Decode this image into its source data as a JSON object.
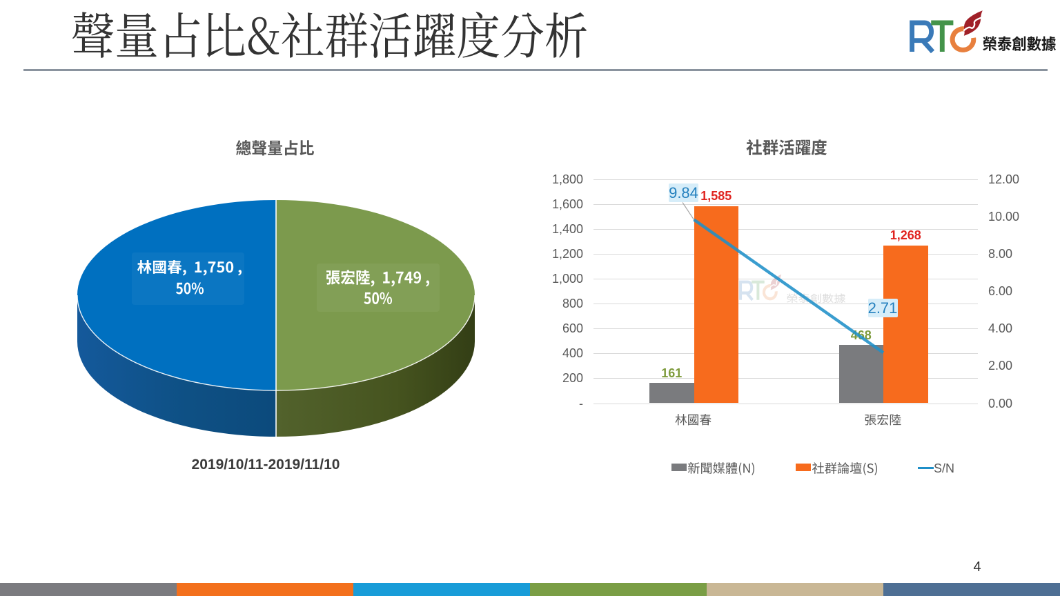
{
  "slide": {
    "title": "聲量占比&社群活躍度分析",
    "page_number": "4",
    "logo": {
      "brand": "RTC",
      "company": "榮泰創數據",
      "colors": {
        "r": "#3A7AB8",
        "t": "#44934A",
        "c": "#E8803E",
        "flame": "#A02028",
        "text": "#1A1A1A"
      }
    },
    "footer_stripe_colors": [
      "#7B7B7F",
      "#F3701D",
      "#189CD8",
      "#7A9E45",
      "#C9B795",
      "#4E6F94"
    ]
  },
  "chart_data": [
    {
      "type": "pie",
      "style": "3d",
      "title": "總聲量占比",
      "period": "2019/10/11-2019/11/10",
      "labels": [
        "林國春",
        "張宏陸"
      ],
      "values": [
        1750,
        1749
      ],
      "percents": [
        "50%",
        "50%"
      ],
      "slice_labels": [
        "林國春,  1,750 , 50%",
        "張宏陸,  1,749 , 50%"
      ],
      "colors": [
        "#0070C0",
        "#7C9A4D"
      ],
      "label_color": "#FFFFFF"
    },
    {
      "type": "bar",
      "title": "社群活躍度",
      "categories": [
        "林國春",
        "張宏陸"
      ],
      "series": [
        {
          "name": "新聞媒體(N)",
          "values": [
            161,
            468
          ],
          "labels": [
            "161",
            "468"
          ],
          "color": "#7A7B7E",
          "label_color": "#7E9B3C"
        },
        {
          "name": "社群論壇(S)",
          "values": [
            1585,
            1268
          ],
          "labels": [
            "1,585",
            "1,268"
          ],
          "color": "#F76B1D",
          "label_color": "#E02420"
        }
      ],
      "line_series": {
        "name": "S/N",
        "values": [
          9.84,
          2.71
        ],
        "labels": [
          "9.84",
          "2.71"
        ],
        "color": "#1F8FC8",
        "label_text_color": "#2480BE",
        "label_bg": "#D6EDF9"
      },
      "left_axis": {
        "min": 0,
        "max": 1800,
        "step": 200,
        "ticks": [
          "-",
          "200",
          "400",
          "600",
          "800",
          "1,000",
          "1,200",
          "1,400",
          "1,600",
          "1,800"
        ]
      },
      "right_axis": {
        "min": 0,
        "max": 12,
        "step": 2,
        "ticks": [
          "0.00",
          "2.00",
          "4.00",
          "6.00",
          "8.00",
          "10.00",
          "12.00"
        ]
      },
      "legend": [
        "新聞媒體(N)",
        "社群論壇(S)",
        "S/N"
      ],
      "grid": true,
      "legend_position": "bottom",
      "watermark": "RTC 榮泰創數據"
    }
  ]
}
